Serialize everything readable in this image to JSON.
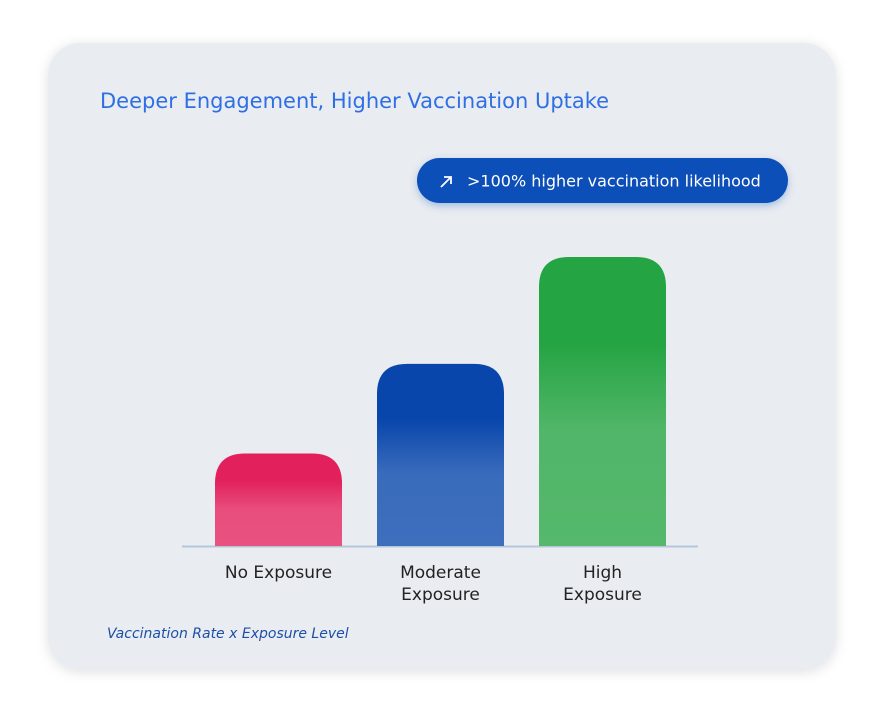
{
  "chart_data": {
    "type": "bar",
    "title": "Deeper Engagement, Higher Vaccination Uptake",
    "annotation": ">100% higher vaccination likelihood",
    "categories": [
      "No Exposure",
      "Moderate\nExposure",
      "High\nExposure"
    ],
    "values": [
      32,
      63,
      100
    ],
    "colors": [
      "#e2215c",
      "#0846ab",
      "#25a443"
    ],
    "footnote": "Vaccination Rate x Exposure Level"
  }
}
